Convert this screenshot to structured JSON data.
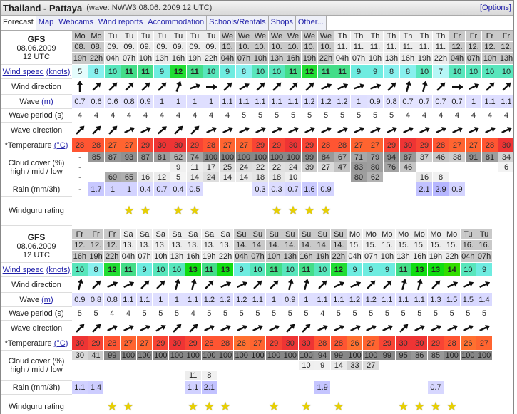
{
  "header": {
    "spot": "Thailand - Pattaya",
    "wave_info": "(wave: NWW3 08.06. 2009 12 UTC)",
    "options_link": "[Options]"
  },
  "tabs": [
    "Forecast",
    "Map",
    "Webcams",
    "Wind reports",
    "Accommodation",
    "Schools/Rentals",
    "Shops",
    "Other..."
  ],
  "labels": {
    "model": "GFS",
    "init_date": "08.06.2009",
    "init_time": "12 UTC",
    "wind_speed": "Wind speed",
    "knots": "(knots)",
    "wind_direction": "Wind direction",
    "wave": "Wave",
    "wave_unit": "(m)",
    "wave_period": "Wave period (s)",
    "wave_direction": "Wave direction",
    "temperature": "*Temperature",
    "temp_unit": "(°C)",
    "cloud_cover": "Cloud cover (%)",
    "cloud_sub": "high / mid / low",
    "rain": "Rain (mm/3h)",
    "rating": "Windguru rating"
  },
  "colors": {
    "wind": {
      "5": "#e4fcfc",
      "7": "#b6f6f6",
      "8": "#88f0ee",
      "9": "#6eece0",
      "10": "#58e6bc",
      "11": "#44dd88",
      "12": "#22dd33",
      "13": "#11dd11",
      "14": "#33dd00"
    },
    "temp": {
      "26": "#ff7030",
      "27": "#ff6430",
      "28": "#ff5532",
      "29": "#f84434",
      "30": "#ee3434",
      "31": "#e82828"
    }
  },
  "tables": [
    {
      "days": [
        "Mo",
        "Mo",
        "Tu",
        "Tu",
        "Tu",
        "Tu",
        "Tu",
        "Tu",
        "Tu",
        "We",
        "We",
        "We",
        "We",
        "We",
        "We",
        "We",
        "Th",
        "Th",
        "Th",
        "Th",
        "Th",
        "Th",
        "Th",
        "Fr",
        "Fr",
        "Fr",
        "Fr"
      ],
      "dates": [
        "08.",
        "08.",
        "09.",
        "09.",
        "09.",
        "09.",
        "09.",
        "09.",
        "09.",
        "10.",
        "10.",
        "10.",
        "10.",
        "10.",
        "10.",
        "10.",
        "11.",
        "11.",
        "11.",
        "11.",
        "11.",
        "11.",
        "11.",
        "12.",
        "12.",
        "12.",
        "12."
      ],
      "hours": [
        "19h",
        "22h",
        "04h",
        "07h",
        "10h",
        "13h",
        "16h",
        "19h",
        "22h",
        "04h",
        "07h",
        "10h",
        "13h",
        "16h",
        "19h",
        "22h",
        "04h",
        "07h",
        "10h",
        "13h",
        "16h",
        "19h",
        "22h",
        "04h",
        "07h",
        "10h",
        "13h"
      ],
      "wind_speed": [
        5,
        8,
        10,
        11,
        11,
        9,
        12,
        11,
        10,
        9,
        8,
        10,
        10,
        11,
        12,
        11,
        11,
        9,
        9,
        8,
        8,
        10,
        7,
        10,
        10,
        10,
        10
      ],
      "wind_dir_arrow_deg": [
        0,
        45,
        45,
        45,
        45,
        45,
        20,
        70,
        90,
        45,
        60,
        45,
        45,
        45,
        45,
        65,
        65,
        70,
        70,
        45,
        15,
        15,
        45,
        90,
        65,
        45,
        45
      ],
      "wave": [
        "0.7",
        "0.6",
        "0.6",
        "0.8",
        "0.9",
        "1",
        "1",
        "1",
        "1",
        "1.1",
        "1.1",
        "1.1",
        "1.1",
        "1.1",
        "1.2",
        "1.2",
        "1.2",
        "1",
        "0.9",
        "0.8",
        "0.7",
        "0.7",
        "0.7",
        "0.7",
        "1",
        "1.1",
        "1.1"
      ],
      "wave_period": [
        4,
        4,
        4,
        4,
        4,
        4,
        4,
        4,
        4,
        4,
        5,
        5,
        5,
        5,
        5,
        5,
        5,
        5,
        5,
        5,
        4,
        4,
        4,
        4,
        4,
        4,
        4
      ],
      "wave_dir_arrow_deg": [
        45,
        45,
        45,
        65,
        65,
        50,
        45,
        45,
        65,
        65,
        65,
        65,
        65,
        65,
        65,
        65,
        65,
        65,
        65,
        65,
        65,
        65,
        65,
        65,
        65,
        65,
        65
      ],
      "temperature": [
        28,
        28,
        27,
        27,
        29,
        30,
        30,
        29,
        28,
        27,
        27,
        29,
        29,
        30,
        29,
        28,
        28,
        27,
        27,
        29,
        30,
        29,
        28,
        27,
        27,
        28,
        30
      ],
      "cloud_high": [
        "-",
        "85",
        "87",
        "93",
        "87",
        "81",
        "62",
        "74",
        "100",
        "100",
        "100",
        "100",
        "100",
        "100",
        "99",
        "84",
        "67",
        "71",
        "79",
        "94",
        "87",
        "37",
        "46",
        "38",
        "91",
        "81",
        "34"
      ],
      "cloud_mid": [
        "-",
        "",
        "",
        "",
        "",
        "",
        "9",
        "11",
        "17",
        "25",
        "24",
        "22",
        "22",
        "24",
        "39",
        "27",
        "47",
        "83",
        "80",
        "76",
        "46",
        "",
        "",
        "",
        "",
        "",
        "6"
      ],
      "cloud_low": [
        "-",
        "",
        "69",
        "65",
        "16",
        "12",
        "5",
        "14",
        "24",
        "14",
        "14",
        "18",
        "18",
        "10",
        "",
        "",
        "",
        "80",
        "62",
        "",
        "",
        "16",
        "8",
        "",
        "",
        "",
        ""
      ],
      "rain": [
        "-",
        "1.7",
        "1",
        "1",
        "0.4",
        "0.7",
        "0.4",
        "0.5",
        "",
        "",
        "",
        "0.3",
        "0.3",
        "0.7",
        "1.6",
        "0.9",
        "",
        "",
        "",
        "",
        "",
        "2.1",
        "2.9",
        "0.9",
        "",
        "",
        ""
      ],
      "rating": [
        0,
        0,
        0,
        1,
        1,
        0,
        1,
        1,
        0,
        0,
        0,
        0,
        1,
        1,
        1,
        1,
        0,
        0,
        0,
        0,
        0,
        0,
        0,
        0,
        0,
        0,
        0
      ]
    },
    {
      "days": [
        "Fr",
        "Fr",
        "Fr",
        "Sa",
        "Sa",
        "Sa",
        "Sa",
        "Sa",
        "Sa",
        "Sa",
        "Su",
        "Su",
        "Su",
        "Su",
        "Su",
        "Su",
        "Su",
        "Mo",
        "Mo",
        "Mo",
        "Mo",
        "Mo",
        "Mo",
        "Mo",
        "Tu",
        "Tu"
      ],
      "dates": [
        "12.",
        "12.",
        "12.",
        "13.",
        "13.",
        "13.",
        "13.",
        "13.",
        "13.",
        "13.",
        "14.",
        "14.",
        "14.",
        "14.",
        "14.",
        "14.",
        "14.",
        "15.",
        "15.",
        "15.",
        "15.",
        "15.",
        "15.",
        "15.",
        "16.",
        "16."
      ],
      "hours": [
        "16h",
        "19h",
        "22h",
        "04h",
        "07h",
        "10h",
        "13h",
        "16h",
        "19h",
        "22h",
        "04h",
        "07h",
        "10h",
        "13h",
        "16h",
        "19h",
        "22h",
        "04h",
        "07h",
        "10h",
        "13h",
        "16h",
        "19h",
        "22h",
        "04h",
        "07h"
      ],
      "wind_speed": [
        10,
        8,
        12,
        11,
        9,
        10,
        10,
        13,
        11,
        13,
        9,
        10,
        11,
        10,
        11,
        10,
        12,
        9,
        9,
        9,
        11,
        13,
        13,
        14,
        10,
        9
      ],
      "wind_dir_arrow_deg": [
        15,
        45,
        65,
        65,
        45,
        45,
        15,
        15,
        45,
        65,
        65,
        45,
        45,
        15,
        15,
        45,
        65,
        65,
        45,
        45,
        15,
        15,
        45,
        65,
        65,
        65
      ],
      "wave": [
        "0.9",
        "0.8",
        "0.8",
        "1.1",
        "1.1",
        "1",
        "1",
        "1.1",
        "1.2",
        "1.2",
        "1.2",
        "1.1",
        "1",
        "0.9",
        "1",
        "1.1",
        "1.1",
        "1.2",
        "1.2",
        "1.1",
        "1.1",
        "1.1",
        "1.3",
        "1.5",
        "1.5",
        "1.4"
      ],
      "wave_period": [
        5,
        5,
        4,
        4,
        5,
        5,
        5,
        4,
        5,
        5,
        5,
        5,
        5,
        5,
        5,
        4,
        5,
        5,
        5,
        5,
        5,
        5,
        5,
        5,
        5,
        5
      ],
      "wave_dir_arrow_deg": [
        45,
        45,
        65,
        65,
        65,
        60,
        45,
        45,
        65,
        65,
        65,
        65,
        65,
        45,
        45,
        65,
        65,
        65,
        65,
        65,
        45,
        65,
        65,
        65,
        65,
        65
      ],
      "temperature": [
        30,
        29,
        28,
        27,
        27,
        29,
        30,
        29,
        28,
        28,
        26,
        27,
        29,
        30,
        30,
        28,
        28,
        26,
        27,
        29,
        30,
        30,
        29,
        28,
        26,
        27
      ],
      "cloud_high": [
        "30",
        "41",
        "99",
        "100",
        "100",
        "100",
        "100",
        "100",
        "100",
        "100",
        "100",
        "100",
        "100",
        "100",
        "100",
        "94",
        "99",
        "100",
        "100",
        "99",
        "95",
        "86",
        "85",
        "100",
        "100",
        "100"
      ],
      "cloud_mid": [
        "",
        "",
        "",
        "",
        "",
        "",
        "",
        "",
        "",
        "",
        "",
        "",
        "",
        "",
        "10",
        "9",
        "14",
        "33",
        "27",
        "",
        "",
        "",
        "",
        "",
        "",
        ""
      ],
      "cloud_low": [
        "",
        "",
        "",
        "",
        "",
        "",
        "",
        "11",
        "8",
        "",
        "",
        "",
        "",
        "",
        "",
        "",
        "",
        "",
        "",
        "",
        "",
        "",
        "",
        "",
        "",
        ""
      ],
      "rain": [
        "1.1",
        "1.4",
        "",
        "",
        "",
        "",
        "",
        "1.1",
        "2.1",
        "",
        "",
        "",
        "",
        "",
        "",
        "1.9",
        "",
        "",
        "",
        "",
        "",
        "",
        "0.7",
        "",
        "",
        ""
      ],
      "rating": [
        0,
        0,
        1,
        1,
        0,
        0,
        0,
        1,
        1,
        1,
        0,
        0,
        1,
        0,
        1,
        0,
        1,
        0,
        0,
        0,
        1,
        1,
        1,
        1,
        0,
        0
      ]
    }
  ]
}
